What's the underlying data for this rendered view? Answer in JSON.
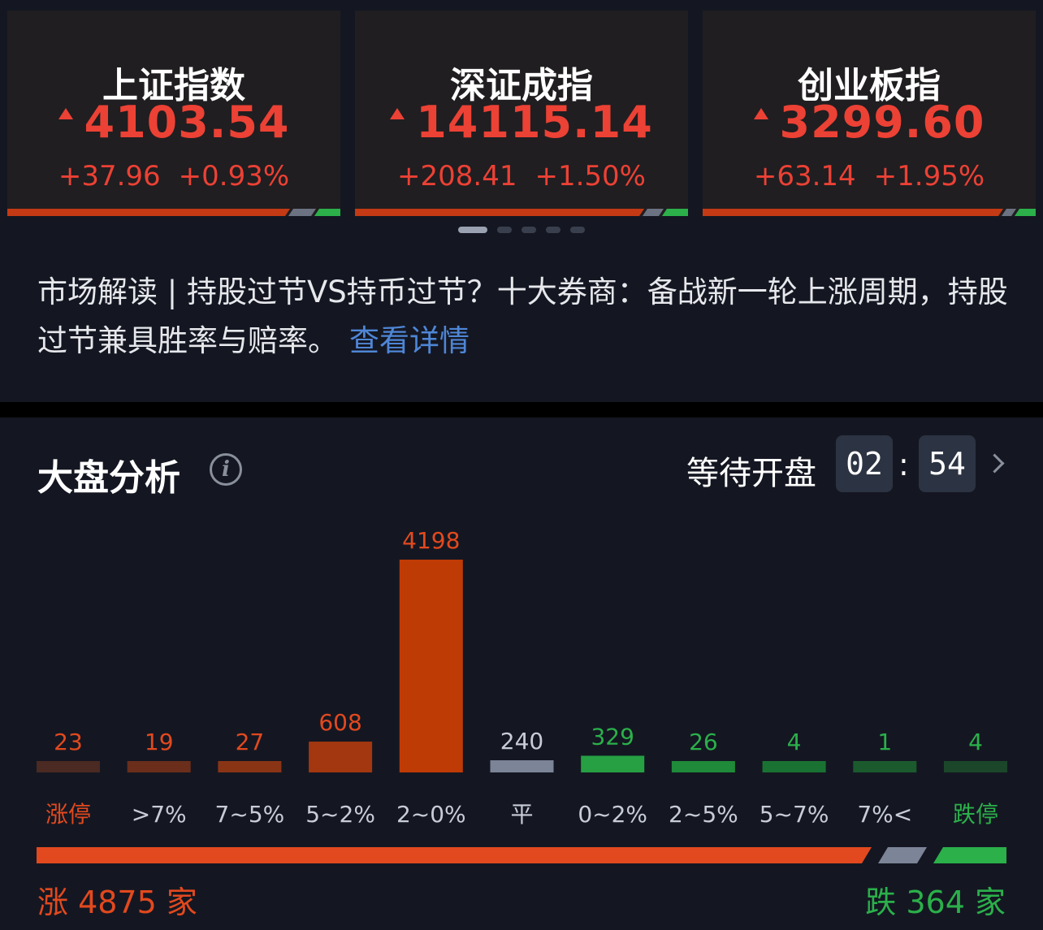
{
  "indices": [
    {
      "name": "上证指数",
      "value": "4103.54",
      "change": "+37.96",
      "percent": "+0.93%"
    },
    {
      "name": "深证成指",
      "value": "14115.14",
      "change": "+208.41",
      "percent": "+1.50%"
    },
    {
      "name": "创业板指",
      "value": "3299.60",
      "change": "+63.14",
      "percent": "+1.95%"
    }
  ],
  "carousel": {
    "pages": 5,
    "active": 0
  },
  "news": {
    "text": "市场解读 | 持股过节VS持币过节？十大券商：备战新一轮上涨周期，持股过节兼具胜率与赔率。",
    "link": "查看详情"
  },
  "analysis": {
    "title": "大盘分析",
    "info_icon": "i",
    "waiting": "等待开盘",
    "timer_minutes": "02",
    "timer_seconds": "54",
    "separator": ":",
    "up_summary": "涨 4875 家",
    "down_summary": "跌 364 家"
  },
  "colors": {
    "up": "#e2491e",
    "flat": "#7c8497",
    "down": "#2bb04a",
    "link": "#4f86d6"
  },
  "chart_data": {
    "type": "bar",
    "categories": [
      "涨停",
      ">7%",
      "7~5%",
      "5~2%",
      "2~0%",
      "平",
      "0~2%",
      "2~5%",
      "5~7%",
      "7%<",
      "跌停"
    ],
    "values": [
      23,
      19,
      27,
      608,
      4198,
      240,
      329,
      26,
      4,
      1,
      4
    ],
    "bar_colors": [
      "#4a2a22",
      "#6a2e1a",
      "#8a3416",
      "#a3370f",
      "#bf3b06",
      "#7c8497",
      "#26a043",
      "#1f8a3a",
      "#1a7232",
      "#1b5a2d",
      "#1c4629"
    ],
    "label_colors": [
      "#e2491e",
      "#e2491e",
      "#e2491e",
      "#e2491e",
      "#e2491e",
      "#c8ccd6",
      "#2bb04a",
      "#2bb04a",
      "#2bb04a",
      "#2bb04a",
      "#2bb04a"
    ],
    "category_colors": [
      "#e2491e",
      "#c8ccd6",
      "#c8ccd6",
      "#c8ccd6",
      "#c8ccd6",
      "#c8ccd6",
      "#c8ccd6",
      "#c8ccd6",
      "#c8ccd6",
      "#c8ccd6",
      "#2bb04a"
    ],
    "ratio": {
      "up": 4875,
      "flat": 240,
      "down": 364
    }
  }
}
